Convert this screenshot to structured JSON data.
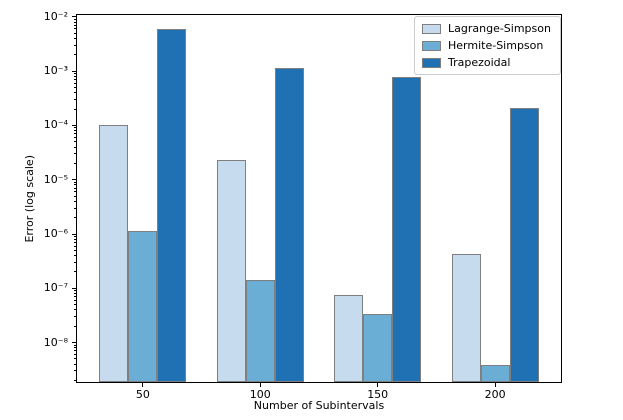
{
  "chart_data": {
    "type": "bar",
    "title": "",
    "xlabel": "Number of Subintervals",
    "ylabel": "Error (log scale)",
    "categories": [
      "50",
      "100",
      "150",
      "200"
    ],
    "series": [
      {
        "name": "Lagrange-Simpson",
        "color": "#c7dbef",
        "values": [
          0.0001,
          2.3e-05,
          7.5e-08,
          4.3e-07
        ]
      },
      {
        "name": "Hermite-Simpson",
        "color": "#6aadd5",
        "values": [
          1.15e-06,
          1.4e-07,
          3.3e-08,
          3.9e-09
        ]
      },
      {
        "name": "Trapezoidal",
        "color": "#2070b4",
        "values": [
          0.006,
          0.00115,
          0.00078,
          0.00021
        ]
      }
    ],
    "yscale": "log",
    "ylim": [
      1.8e-09,
      0.0113
    ],
    "yticks": [
      {
        "value": 0.01,
        "label": "10⁻²"
      },
      {
        "value": 0.001,
        "label": "10⁻³"
      },
      {
        "value": 0.0001,
        "label": "10⁻⁴"
      },
      {
        "value": 1e-05,
        "label": "10⁻⁵"
      },
      {
        "value": 1e-06,
        "label": "10⁻⁶"
      },
      {
        "value": 1e-07,
        "label": "10⁻⁷"
      },
      {
        "value": 1e-08,
        "label": "10⁻⁸"
      }
    ],
    "bar_edge_color": "#7f7f7f",
    "legend": {
      "position": "upper right",
      "entries": [
        "Lagrange-Simpson",
        "Hermite-Simpson",
        "Trapezoidal"
      ]
    },
    "grid": false
  }
}
